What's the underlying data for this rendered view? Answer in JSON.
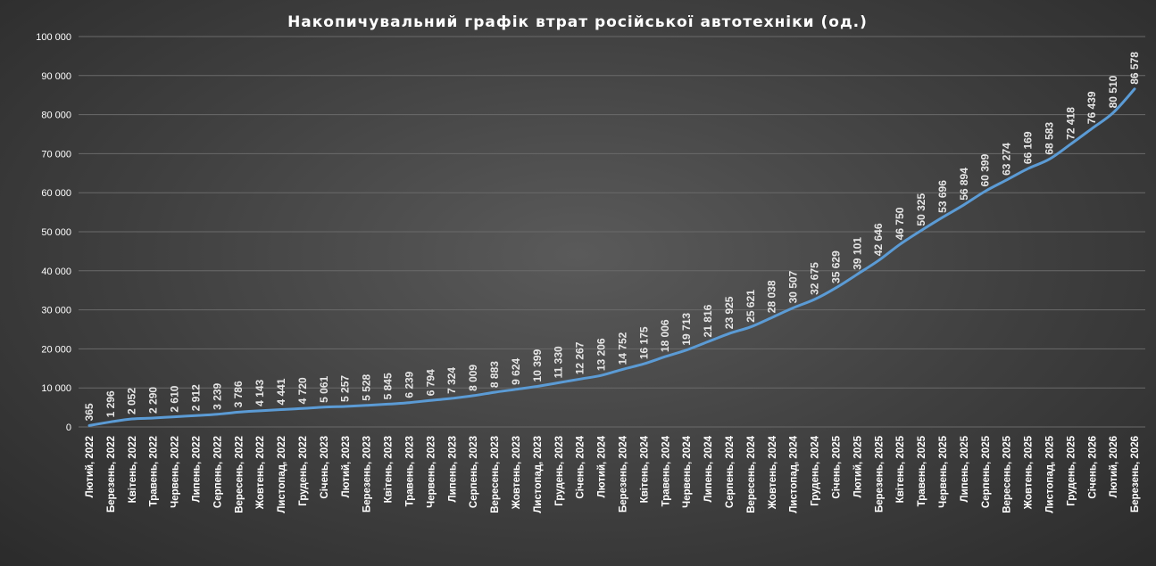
{
  "chart_data": {
    "type": "line",
    "title": "Накопичувальний графік втрат російської автотехніки (од.)",
    "xlabel": "",
    "ylabel": "",
    "ylim": [
      0,
      100000
    ],
    "y_ticks": [
      "0",
      "10 000",
      "20 000",
      "30 000",
      "40 000",
      "50 000",
      "60 000",
      "70 000",
      "80 000",
      "90 000",
      "100 000"
    ],
    "grid": true,
    "legend": "none",
    "series_color": "#5b9bd5",
    "categories": [
      "Лютий, 2022",
      "Березень, 2022",
      "Квітень, 2022",
      "Травень, 2022",
      "Червень, 2022",
      "Липень, 2022",
      "Серпень, 2022",
      "Вересень, 2022",
      "Жовтень, 2022",
      "Листопад, 2022",
      "Грудень, 2022",
      "Січень, 2023",
      "Лютий, 2023",
      "Березень, 2023",
      "Квітень, 2023",
      "Травень, 2023",
      "Червень, 2023",
      "Липень, 2023",
      "Серпень, 2023",
      "Вересень, 2023",
      "Жовтень, 2023",
      "Листопад, 2023",
      "Грудень, 2023",
      "Січень, 2024",
      "Лютий, 2024",
      "Березень, 2024",
      "Квітень, 2024",
      "Травень, 2024",
      "Червень, 2024",
      "Липень, 2024",
      "Серпень, 2024",
      "Вересень, 2024",
      "Жовтень, 2024",
      "Листопад, 2024",
      "Грудень, 2024",
      "Січень, 2025",
      "Лютий, 2025",
      "Березень, 2025",
      "Квітень, 2025",
      "Травень, 2025",
      "Червень, 2025",
      "Липень, 2025",
      "Серпень, 2025",
      "Вересень, 2025",
      "Жовтень, 2025",
      "Листопад, 2025",
      "Грудень, 2025",
      "Січень, 2026",
      "Лютий, 2026",
      "Березень, 2026"
    ],
    "values": [
      365,
      1296,
      2052,
      2290,
      2610,
      2912,
      3239,
      3786,
      4143,
      4441,
      4720,
      5061,
      5257,
      5528,
      5845,
      6239,
      6794,
      7324,
      8009,
      8883,
      9624,
      10399,
      11330,
      12267,
      13206,
      14752,
      16175,
      18006,
      19713,
      21816,
      23925,
      25621,
      28038,
      30507,
      32675,
      35629,
      39101,
      42646,
      46750,
      50325,
      53696,
      56894,
      60399,
      63274,
      66169,
      68583,
      72418,
      76439,
      80510,
      86578
    ],
    "data_labels": [
      "365",
      "1 296",
      "2 052",
      "2 290",
      "2 610",
      "2 912",
      "3 239",
      "3 786",
      "4 143",
      "4 441",
      "4 720",
      "5 061",
      "5 257",
      "5 528",
      "5 845",
      "6 239",
      "6 794",
      "7 324",
      "8 009",
      "8 883",
      "9 624",
      "10 399",
      "11 330",
      "12 267",
      "13 206",
      "14 752",
      "16 175",
      "18 006",
      "19 713",
      "21 816",
      "23 925",
      "25 621",
      "28 038",
      "30 507",
      "32 675",
      "35 629",
      "39 101",
      "42 646",
      "46 750",
      "50 325",
      "53 696",
      "56 894",
      "60 399",
      "63 274",
      "66 169",
      "68 583",
      "72 418",
      "76 439",
      "80 510",
      "86 578"
    ]
  }
}
